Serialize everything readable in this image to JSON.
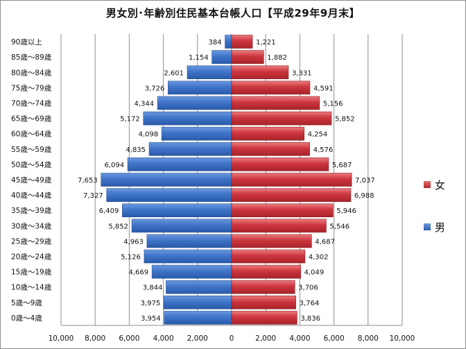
{
  "chart_data": {
    "type": "bar",
    "orientation": "horizontal-population-pyramid",
    "title": "男女別･年齢別住民基本台帳人口【平成29年9月末】",
    "categories": [
      "0歳～4歳",
      "5歳～9歳",
      "10歳～14歳",
      "15歳～19歳",
      "20歳～24歳",
      "25歳～29歳",
      "30歳～34歳",
      "35歳～39歳",
      "40歳～44歳",
      "45歳～49歳",
      "50歳～54歳",
      "55歳～59歳",
      "60歳～64歳",
      "65歳～69歳",
      "70歳～74歳",
      "75歳～79歳",
      "80歳～84歳",
      "85歳～89歳",
      "90歳以上"
    ],
    "series": [
      {
        "name": "男",
        "side": "left",
        "color": "#3b6fc4",
        "values": [
          3954,
          3975,
          3844,
          4669,
          5126,
          4963,
          5852,
          6409,
          7327,
          7653,
          6094,
          4835,
          4098,
          5172,
          4344,
          3726,
          2601,
          1154,
          384
        ]
      },
      {
        "name": "女",
        "side": "right",
        "color": "#c8303a",
        "values": [
          3836,
          3764,
          3706,
          4049,
          4302,
          4687,
          5546,
          5946,
          6988,
          7037,
          5687,
          4576,
          4254,
          5852,
          5156,
          4591,
          3331,
          1882,
          1221
        ]
      }
    ],
    "xlim": [
      -10000,
      10000
    ],
    "xticks": [
      "10,000",
      "8,000",
      "6,000",
      "4,000",
      "2,000",
      "0",
      "2,000",
      "4,000",
      "6,000",
      "8,000",
      "10,000"
    ],
    "grid": "vertical",
    "legend": "right"
  },
  "legend": {
    "female_label": "女",
    "male_label": "男"
  }
}
